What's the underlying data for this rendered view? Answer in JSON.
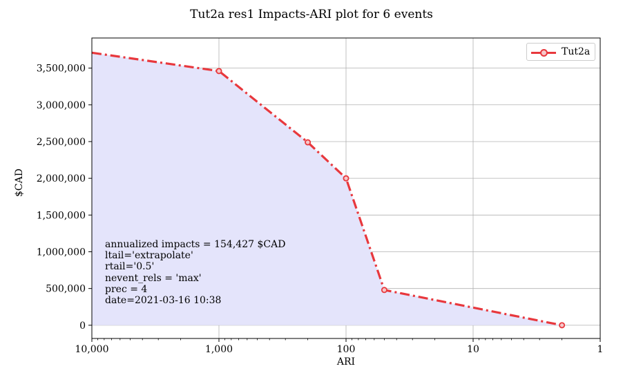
{
  "chart_data": {
    "type": "area",
    "title": "Tut2a res1 Impacts-ARI plot for 6 events",
    "xlabel": "ARI",
    "ylabel": "$CAD",
    "x_scale": "log",
    "x_reversed": true,
    "xlim": [
      10000,
      1
    ],
    "ylim": [
      -180000,
      3910000
    ],
    "x_ticks": [
      10000,
      1000,
      100,
      10,
      1
    ],
    "x_tick_labels": [
      "10,000",
      "1,000",
      "100",
      "10",
      "1"
    ],
    "y_ticks": [
      0,
      500000,
      1000000,
      1500000,
      2000000,
      2500000,
      3000000,
      3500000
    ],
    "y_tick_labels": [
      "0",
      "500,000",
      "1,000,000",
      "1,500,000",
      "2,000,000",
      "2,500,000",
      "3,000,000",
      "3,500,000"
    ],
    "grid": true,
    "legend_position": "top-right",
    "series": [
      {
        "name": "Tut2a",
        "color": "#e8383d",
        "fill_color": "#e4e4fb",
        "line_style": "dash-dot",
        "marker": "circle",
        "extrapolated_point": {
          "x": 10000,
          "y": 3710000
        },
        "points": [
          {
            "x": 1000,
            "y": 3460000
          },
          {
            "x": 200,
            "y": 2490000
          },
          {
            "x": 100,
            "y": 2000000
          },
          {
            "x": 50,
            "y": 480000
          },
          {
            "x": 2,
            "y": 0
          }
        ]
      }
    ],
    "annotations": [
      "annualized impacts = 154,427 $CAD",
      "ltail='extrapolate'",
      "rtail='0.5'",
      "nevent_rels = 'max'",
      "prec = 4",
      "date=2021-03-16 10:38"
    ]
  }
}
